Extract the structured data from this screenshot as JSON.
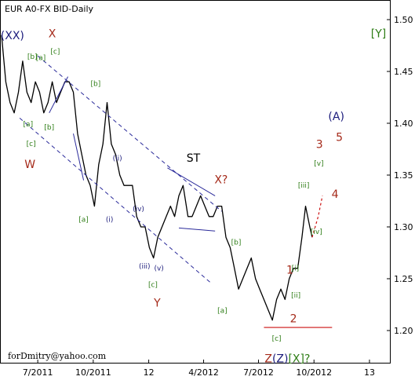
{
  "window": {
    "title": "EUR A0-FX BID-Daily",
    "credit": "forDmitry@yahoo.com"
  },
  "colors": {
    "price_line": "#000000",
    "channel": "#2a2a9a",
    "red": "#cc1111",
    "green_label": "#2e7d16",
    "navy_label": "#1c1c7c",
    "brown_label": "#a52a1a"
  },
  "chart_data": {
    "type": "line",
    "title": "EUR A0-FX BID-Daily",
    "xlabel": "",
    "ylabel": "",
    "ylim": [
      1.18,
      1.51
    ],
    "xlim": [
      "2011-05-02",
      "2013-01-31"
    ],
    "y_ticks": [
      "1.20",
      "1.25",
      "1.30",
      "1.35",
      "1.40",
      "1.45",
      "1.50"
    ],
    "x_ticks": [
      {
        "date": "2011-07-01",
        "label": "7/2011"
      },
      {
        "date": "2011-10-01",
        "label": "10/2011"
      },
      {
        "date": "2012-01-01",
        "label": "12"
      },
      {
        "date": "2012-04-01",
        "label": "4/2012"
      },
      {
        "date": "2012-07-01",
        "label": "7/2012"
      },
      {
        "date": "2012-10-01",
        "label": "10/2012"
      },
      {
        "date": "2013-01-01",
        "label": "13"
      }
    ],
    "series": [
      {
        "points": [
          [
            "2011-05-02",
            1.485
          ],
          [
            "2011-05-09",
            1.44
          ],
          [
            "2011-05-16",
            1.42
          ],
          [
            "2011-05-23",
            1.41
          ],
          [
            "2011-05-30",
            1.43
          ],
          [
            "2011-06-06",
            1.46
          ],
          [
            "2011-06-13",
            1.43
          ],
          [
            "2011-06-20",
            1.42
          ],
          [
            "2011-06-27",
            1.44
          ],
          [
            "2011-07-04",
            1.43
          ],
          [
            "2011-07-11",
            1.41
          ],
          [
            "2011-07-18",
            1.42
          ],
          [
            "2011-07-25",
            1.44
          ],
          [
            "2011-08-01",
            1.42
          ],
          [
            "2011-08-08",
            1.43
          ],
          [
            "2011-08-15",
            1.44
          ],
          [
            "2011-08-22",
            1.44
          ],
          [
            "2011-08-29",
            1.43
          ],
          [
            "2011-09-05",
            1.39
          ],
          [
            "2011-09-12",
            1.37
          ],
          [
            "2011-09-19",
            1.35
          ],
          [
            "2011-09-26",
            1.34
          ],
          [
            "2011-10-03",
            1.32
          ],
          [
            "2011-10-10",
            1.36
          ],
          [
            "2011-10-17",
            1.38
          ],
          [
            "2011-10-24",
            1.42
          ],
          [
            "2011-10-31",
            1.38
          ],
          [
            "2011-11-07",
            1.37
          ],
          [
            "2011-11-14",
            1.35
          ],
          [
            "2011-11-21",
            1.34
          ],
          [
            "2011-11-28",
            1.34
          ],
          [
            "2011-12-05",
            1.34
          ],
          [
            "2011-12-12",
            1.31
          ],
          [
            "2011-12-19",
            1.3
          ],
          [
            "2011-12-26",
            1.3
          ],
          [
            "2012-01-02",
            1.28
          ],
          [
            "2012-01-09",
            1.27
          ],
          [
            "2012-01-16",
            1.29
          ],
          [
            "2012-01-23",
            1.3
          ],
          [
            "2012-01-30",
            1.31
          ],
          [
            "2012-02-06",
            1.32
          ],
          [
            "2012-02-13",
            1.31
          ],
          [
            "2012-02-20",
            1.33
          ],
          [
            "2012-02-27",
            1.34
          ],
          [
            "2012-03-06",
            1.31
          ],
          [
            "2012-03-13",
            1.31
          ],
          [
            "2012-03-20",
            1.32
          ],
          [
            "2012-03-27",
            1.33
          ],
          [
            "2012-04-03",
            1.32
          ],
          [
            "2012-04-10",
            1.31
          ],
          [
            "2012-04-17",
            1.31
          ],
          [
            "2012-04-24",
            1.32
          ],
          [
            "2012-05-01",
            1.32
          ],
          [
            "2012-05-08",
            1.29
          ],
          [
            "2012-05-15",
            1.28
          ],
          [
            "2012-05-22",
            1.26
          ],
          [
            "2012-05-29",
            1.24
          ],
          [
            "2012-06-05",
            1.25
          ],
          [
            "2012-06-12",
            1.26
          ],
          [
            "2012-06-19",
            1.27
          ],
          [
            "2012-06-26",
            1.25
          ],
          [
            "2012-07-03",
            1.24
          ],
          [
            "2012-07-10",
            1.23
          ],
          [
            "2012-07-17",
            1.22
          ],
          [
            "2012-07-24",
            1.21
          ],
          [
            "2012-07-31",
            1.23
          ],
          [
            "2012-08-07",
            1.24
          ],
          [
            "2012-08-14",
            1.23
          ],
          [
            "2012-08-21",
            1.25
          ],
          [
            "2012-08-28",
            1.26
          ],
          [
            "2012-09-04",
            1.26
          ],
          [
            "2012-09-11",
            1.29
          ],
          [
            "2012-09-17",
            1.32
          ],
          [
            "2012-09-24",
            1.3
          ],
          [
            "2012-09-28",
            1.29
          ]
        ]
      }
    ],
    "forecast_points": [
      [
        "2012-09-28",
        1.29
      ],
      [
        "2012-10-08",
        1.31
      ],
      [
        "2012-10-15",
        1.33
      ]
    ],
    "channel_upper": [
      [
        "2011-07-01",
        1.465
      ],
      [
        "2012-05-01",
        1.315
      ]
    ],
    "channel_lower": [
      [
        "2011-06-01",
        1.405
      ],
      [
        "2012-04-15",
        1.245
      ]
    ],
    "trendlines": [
      [
        [
          "2011-07-20",
          1.41
        ],
        [
          "2011-08-20",
          1.445
        ]
      ],
      [
        [
          "2011-08-29",
          1.39
        ],
        [
          "2011-09-15",
          1.345
        ]
      ],
      [
        [
          "2012-02-01",
          1.357
        ],
        [
          "2012-04-20",
          1.33
        ]
      ],
      [
        [
          "2012-02-20",
          1.299
        ],
        [
          "2012-04-20",
          1.296
        ]
      ]
    ],
    "support_line": [
      [
        "2012-07-10",
        1.203
      ],
      [
        "2012-10-31",
        1.203
      ]
    ],
    "annotations": [
      {
        "text": "(XX)",
        "date": "2011-05-20",
        "y": 1.481,
        "style": "navy-big"
      },
      {
        "text": "X",
        "date": "2011-07-25",
        "y": 1.483,
        "style": "red"
      },
      {
        "text": "[b]",
        "date": "2011-06-22",
        "y": 1.462,
        "style": "green"
      },
      {
        "text": "[a]",
        "date": "2011-07-06",
        "y": 1.461,
        "style": "green"
      },
      {
        "text": "[c]",
        "date": "2011-07-30",
        "y": 1.467,
        "style": "green"
      },
      {
        "text": "[b]",
        "date": "2011-10-05",
        "y": 1.436,
        "style": "green"
      },
      {
        "text": "[a]",
        "date": "2011-06-15",
        "y": 1.397,
        "style": "green"
      },
      {
        "text": "[b]",
        "date": "2011-07-20",
        "y": 1.394,
        "style": "green"
      },
      {
        "text": "[c]",
        "date": "2011-06-20",
        "y": 1.378,
        "style": "green"
      },
      {
        "text": "W",
        "date": "2011-06-18",
        "y": 1.357,
        "style": "red"
      },
      {
        "text": "(ii)",
        "date": "2011-11-10",
        "y": 1.364,
        "style": "navy"
      },
      {
        "text": "ST",
        "date": "2012-03-15",
        "y": 1.363,
        "style": "black-big"
      },
      {
        "text": "X?",
        "date": "2012-04-30",
        "y": 1.342,
        "style": "red"
      },
      {
        "text": "(iv)",
        "date": "2011-12-15",
        "y": 1.315,
        "style": "navy"
      },
      {
        "text": "[a]",
        "date": "2011-09-15",
        "y": 1.305,
        "style": "green"
      },
      {
        "text": "(i)",
        "date": "2011-10-28",
        "y": 1.305,
        "style": "navy"
      },
      {
        "text": "(iii)",
        "date": "2011-12-25",
        "y": 1.26,
        "style": "navy"
      },
      {
        "text": "(v)",
        "date": "2012-01-18",
        "y": 1.258,
        "style": "navy"
      },
      {
        "text": "[c]",
        "date": "2012-01-08",
        "y": 1.242,
        "style": "green"
      },
      {
        "text": "Y",
        "date": "2012-01-15",
        "y": 1.223,
        "style": "red"
      },
      {
        "text": "[b]",
        "date": "2012-05-25",
        "y": 1.283,
        "style": "green"
      },
      {
        "text": "[a]",
        "date": "2012-05-02",
        "y": 1.217,
        "style": "green"
      },
      {
        "text": "1",
        "date": "2012-08-22",
        "y": 1.255,
        "style": "red"
      },
      {
        "text": "[i]",
        "date": "2012-08-31",
        "y": 1.258,
        "style": "green"
      },
      {
        "text": "[ii]",
        "date": "2012-09-01",
        "y": 1.232,
        "style": "green"
      },
      {
        "text": "2",
        "date": "2012-08-28",
        "y": 1.208,
        "style": "red"
      },
      {
        "text": "[c]",
        "date": "2012-07-31",
        "y": 1.19,
        "style": "green"
      },
      {
        "text": "[iii]",
        "date": "2012-09-14",
        "y": 1.338,
        "style": "green"
      },
      {
        "text": "[iv]",
        "date": "2012-10-05",
        "y": 1.293,
        "style": "green"
      },
      {
        "text": "[v]",
        "date": "2012-10-09",
        "y": 1.359,
        "style": "green"
      },
      {
        "text": "3",
        "date": "2012-10-10",
        "y": 1.376,
        "style": "red"
      },
      {
        "text": "4",
        "date": "2012-11-05",
        "y": 1.328,
        "style": "red"
      },
      {
        "text": "5",
        "date": "2012-11-12",
        "y": 1.383,
        "style": "red"
      },
      {
        "text": "(A)",
        "date": "2012-11-07",
        "y": 1.403,
        "style": "navy-big"
      },
      {
        "text": "[Y]",
        "date": "2013-01-16",
        "y": 1.483,
        "style": "green-big"
      }
    ],
    "bottom_annotation": {
      "date": "2012-08-31",
      "y": 1.18,
      "parts": [
        {
          "text": "Z",
          "style": "red"
        },
        {
          "text": "(Z)",
          "style": "navy-big"
        },
        {
          "text": "[X]?",
          "style": "green-big"
        }
      ]
    }
  }
}
